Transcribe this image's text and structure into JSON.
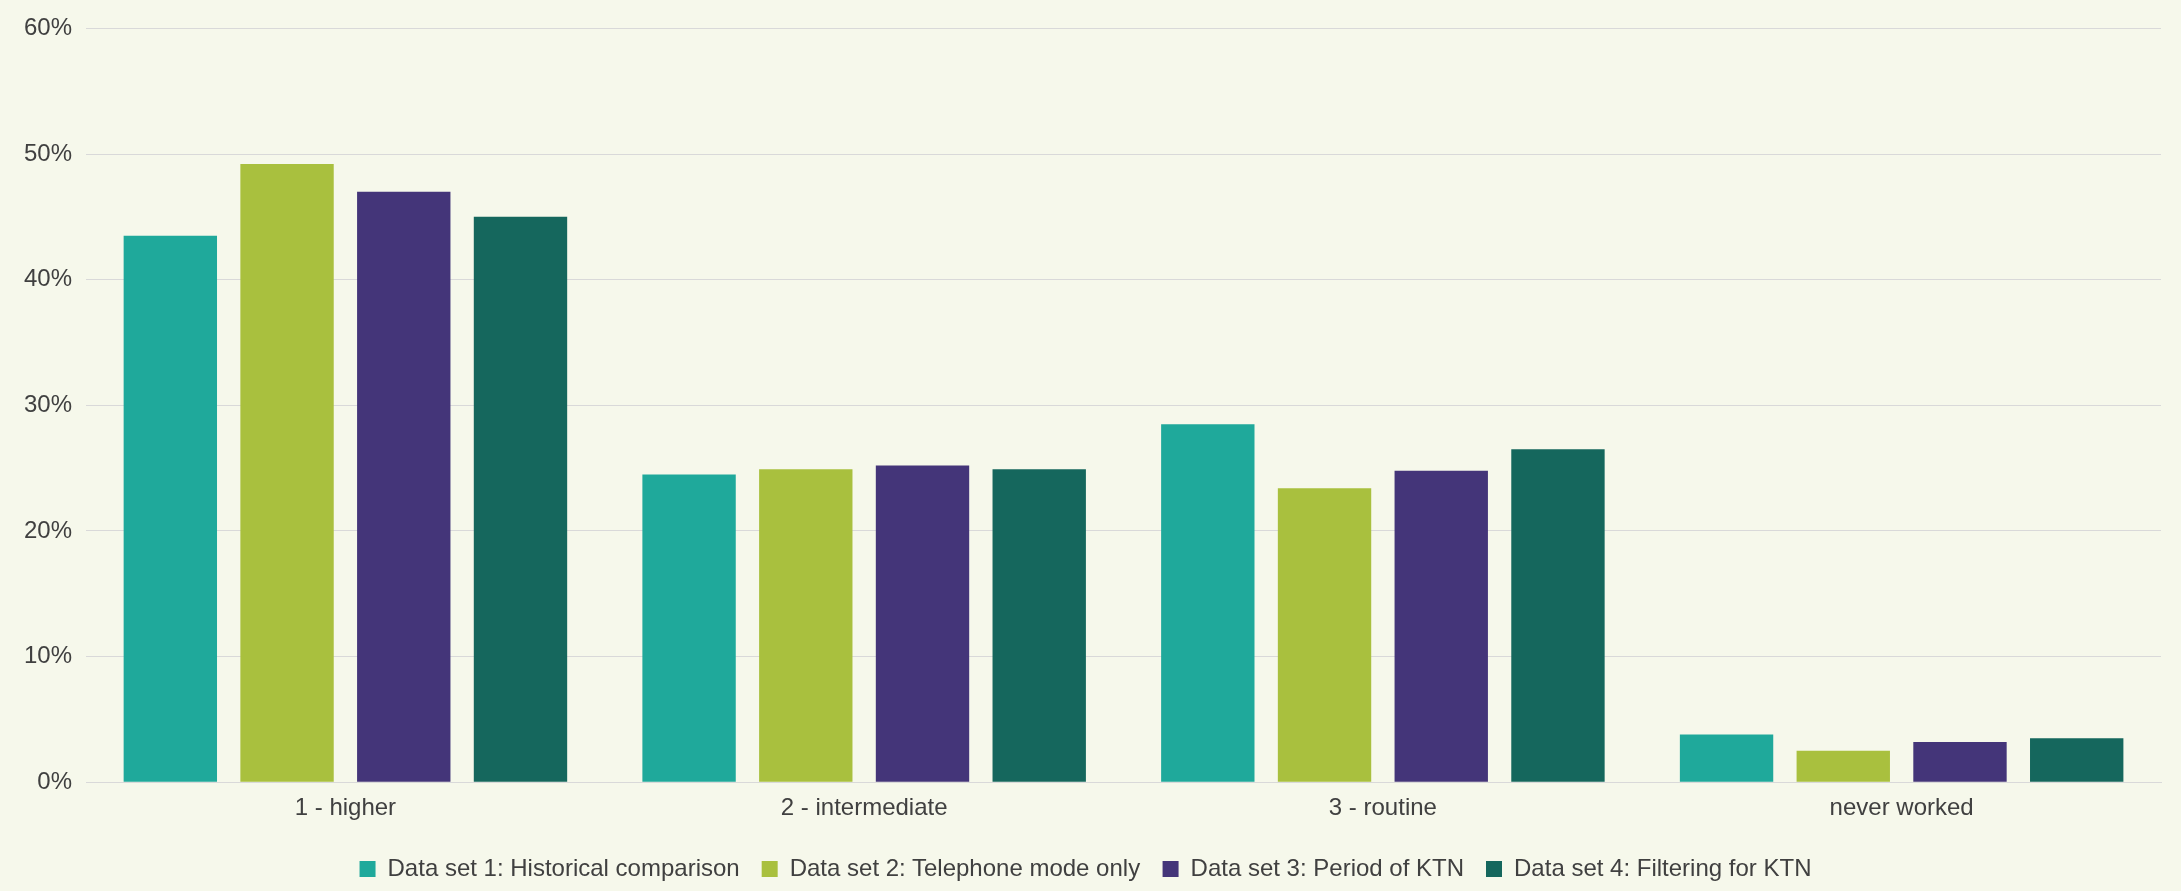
{
  "chart_data": {
    "type": "bar",
    "categories": [
      "1 - higher",
      "2 - intermediate",
      "3 - routine",
      "never worked"
    ],
    "series": [
      {
        "name": "Data set 1: Historical comparison",
        "color": "#1fa99b",
        "values": [
          43.5,
          24.5,
          28.5,
          3.8
        ]
      },
      {
        "name": "Data set 2: Telephone mode only",
        "color": "#a9c03e",
        "values": [
          49.2,
          24.9,
          23.4,
          2.5
        ]
      },
      {
        "name": "Data set 3: Period of KTN",
        "color": "#443579",
        "values": [
          47.0,
          25.2,
          24.8,
          3.2
        ]
      },
      {
        "name": "Data set 4: Filtering for KTN",
        "color": "#15675d",
        "values": [
          45.0,
          24.9,
          26.5,
          3.5
        ]
      }
    ],
    "ylim": [
      0,
      60
    ],
    "yticks": [
      {
        "value": 0,
        "label": "0%"
      },
      {
        "value": 10,
        "label": "10%"
      },
      {
        "value": 20,
        "label": "20%"
      },
      {
        "value": 30,
        "label": "30%"
      },
      {
        "value": 40,
        "label": "40%"
      },
      {
        "value": 50,
        "label": "50%"
      },
      {
        "value": 60,
        "label": "60%"
      }
    ],
    "grid": "y",
    "legend": "bottom"
  }
}
